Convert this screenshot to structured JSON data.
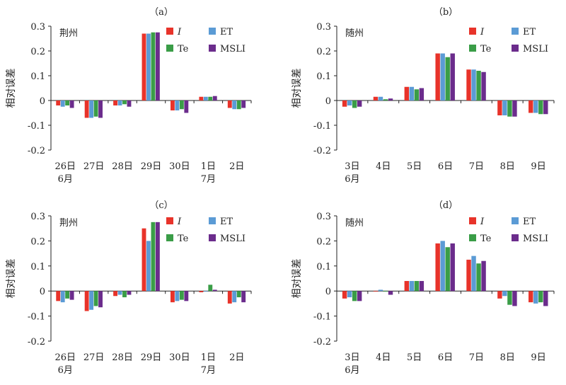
{
  "colors": {
    "I": "#e8332a",
    "ET": "#5b9bd5",
    "Te": "#3a9d47",
    "MSLI": "#6b2c8c"
  },
  "chart_data": [
    {
      "type": "bar",
      "panel_label": "（a）",
      "station": "荆州",
      "ylabel": "相对误差",
      "ylim": [
        -0.2,
        0.3
      ],
      "yticks": [
        "-0.2",
        "-0.1",
        "0",
        "0.1",
        "0.2",
        "0.3"
      ],
      "categories": [
        "26日",
        "27日",
        "28日",
        "29日",
        "30日",
        "1日",
        "2日"
      ],
      "months": [
        "6月",
        "",
        "",
        "",
        "",
        "7月",
        ""
      ],
      "series": [
        {
          "name": "I",
          "values": [
            -0.02,
            -0.07,
            -0.02,
            0.27,
            -0.04,
            0.015,
            -0.03
          ]
        },
        {
          "name": "ET",
          "values": [
            -0.025,
            -0.07,
            -0.02,
            0.27,
            -0.04,
            0.015,
            -0.035
          ]
        },
        {
          "name": "Te",
          "values": [
            -0.02,
            -0.065,
            -0.015,
            0.275,
            -0.035,
            0.015,
            -0.035
          ]
        },
        {
          "name": "MSLI",
          "values": [
            -0.03,
            -0.07,
            -0.025,
            0.275,
            -0.05,
            0.018,
            -0.03
          ]
        }
      ]
    },
    {
      "type": "bar",
      "panel_label": "（b）",
      "station": "随州",
      "ylabel": "相对误差",
      "ylim": [
        -0.2,
        0.3
      ],
      "yticks": [
        "-0.2",
        "-0.1",
        "0",
        "0.1",
        "0.2",
        "0.3"
      ],
      "categories": [
        "3日",
        "4日",
        "5日",
        "6日",
        "7日",
        "8日",
        "9日"
      ],
      "months": [
        "6月",
        "",
        "",
        "",
        "",
        "",
        ""
      ],
      "series": [
        {
          "name": "I",
          "values": [
            -0.025,
            0.015,
            0.055,
            0.19,
            0.125,
            -0.06,
            -0.05
          ]
        },
        {
          "name": "ET",
          "values": [
            -0.02,
            0.015,
            0.055,
            0.19,
            0.125,
            -0.06,
            -0.05
          ]
        },
        {
          "name": "Te",
          "values": [
            -0.03,
            0.005,
            0.045,
            0.175,
            0.12,
            -0.065,
            -0.055
          ]
        },
        {
          "name": "MSLI",
          "values": [
            -0.025,
            0.008,
            0.05,
            0.19,
            0.115,
            -0.065,
            -0.055
          ]
        }
      ]
    },
    {
      "type": "bar",
      "panel_label": "（c）",
      "station": "荆州",
      "ylabel": "相对误差",
      "ylim": [
        -0.2,
        0.3
      ],
      "yticks": [
        "-0.2",
        "-0.1",
        "0",
        "0.1",
        "0.2",
        "0.3"
      ],
      "categories": [
        "26日",
        "27日",
        "28日",
        "29日",
        "30日",
        "1日",
        "2日"
      ],
      "months": [
        "6月",
        "",
        "",
        "",
        "",
        "7月",
        ""
      ],
      "series": [
        {
          "name": "I",
          "values": [
            -0.04,
            -0.08,
            -0.02,
            0.25,
            -0.045,
            -0.005,
            -0.05
          ]
        },
        {
          "name": "ET",
          "values": [
            -0.045,
            -0.075,
            -0.015,
            0.2,
            -0.04,
            0.0,
            -0.045
          ]
        },
        {
          "name": "Te",
          "values": [
            -0.03,
            -0.06,
            -0.025,
            0.275,
            -0.035,
            0.025,
            -0.025
          ]
        },
        {
          "name": "MSLI",
          "values": [
            -0.035,
            -0.065,
            -0.015,
            0.275,
            -0.04,
            0.005,
            -0.045
          ]
        }
      ]
    },
    {
      "type": "bar",
      "panel_label": "（d）",
      "station": "随州",
      "ylabel": "相对误差",
      "ylim": [
        -0.2,
        0.3
      ],
      "yticks": [
        "-0.2",
        "-0.1",
        "0",
        "0.1",
        "0.2",
        "0.3"
      ],
      "categories": [
        "3日",
        "4日",
        "5日",
        "6日",
        "7日",
        "8日",
        "9日"
      ],
      "months": [
        "6月",
        "",
        "",
        "",
        "",
        "",
        ""
      ],
      "series": [
        {
          "name": "I",
          "values": [
            -0.03,
            0.0,
            0.04,
            0.19,
            0.125,
            -0.03,
            -0.045
          ]
        },
        {
          "name": "ET",
          "values": [
            -0.025,
            0.005,
            0.04,
            0.2,
            0.14,
            -0.02,
            -0.05
          ]
        },
        {
          "name": "Te",
          "values": [
            -0.04,
            0.0,
            0.04,
            0.175,
            0.11,
            -0.055,
            -0.045
          ]
        },
        {
          "name": "MSLI",
          "values": [
            -0.04,
            -0.015,
            0.04,
            0.19,
            0.12,
            -0.06,
            -0.06
          ]
        }
      ]
    }
  ]
}
